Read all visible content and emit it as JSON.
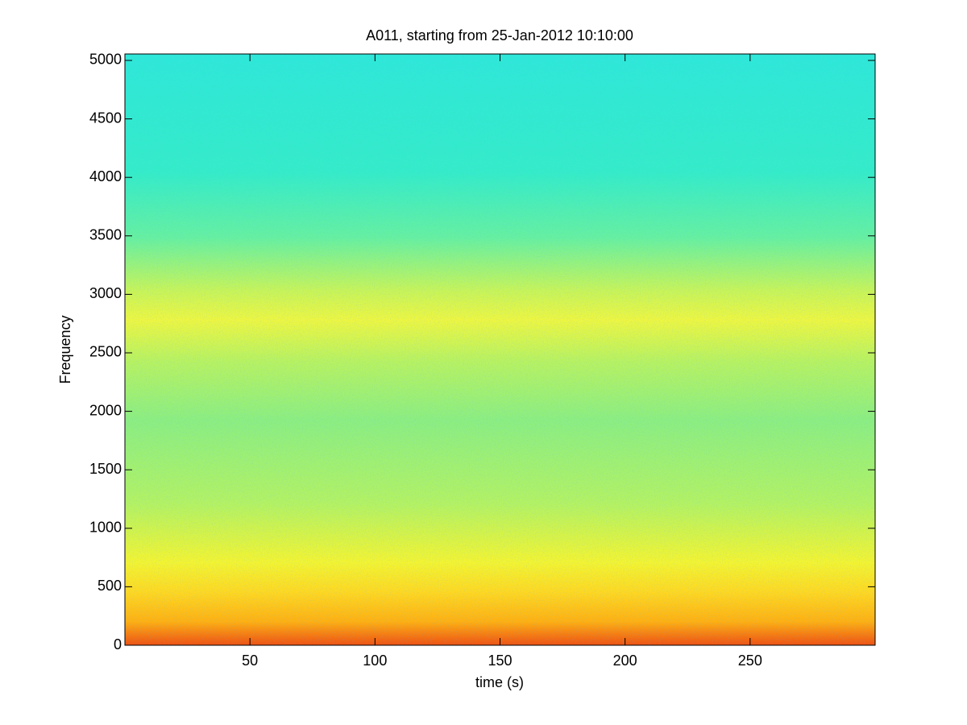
{
  "chart_data": {
    "type": "spectrogram",
    "title": "A011, starting from 25-Jan-2012 10:10:00",
    "xlabel": "time (s)",
    "ylabel": "Frequency",
    "xlim": [
      0,
      300
    ],
    "xticks": [
      50,
      100,
      150,
      200,
      250
    ],
    "ylim": [
      0,
      5055
    ],
    "yticks": [
      0,
      500,
      1000,
      1500,
      2000,
      2500,
      3000,
      3500,
      4000,
      4500,
      5000
    ]
  }
}
